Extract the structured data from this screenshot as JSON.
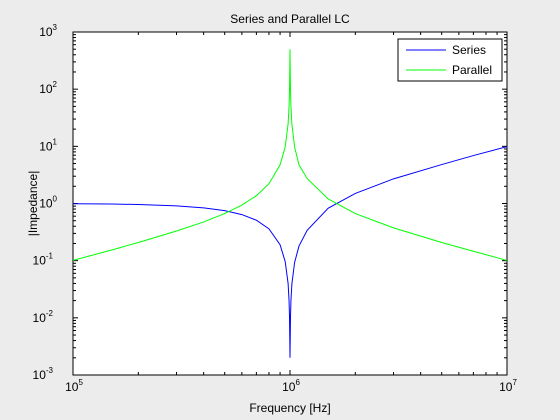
{
  "chart_data": {
    "type": "line",
    "title": "Series and Parallel LC",
    "xlabel": "Frequency [Hz]",
    "ylabel": "|Impedance|",
    "xscale": "log",
    "yscale": "log",
    "xlim": [
      100000,
      10000000
    ],
    "ylim": [
      0.001,
      1000
    ],
    "x_ticks": [
      {
        "base": "10",
        "exp": "5",
        "value": 100000
      },
      {
        "base": "10",
        "exp": "6",
        "value": 1000000
      },
      {
        "base": "10",
        "exp": "7",
        "value": 10000000
      }
    ],
    "y_ticks": [
      {
        "base": "10",
        "exp": "-3",
        "value": 0.001
      },
      {
        "base": "10",
        "exp": "-2",
        "value": 0.01
      },
      {
        "base": "10",
        "exp": "-1",
        "value": 0.1
      },
      {
        "base": "10",
        "exp": "0",
        "value": 1
      },
      {
        "base": "10",
        "exp": "1",
        "value": 10
      },
      {
        "base": "10",
        "exp": "2",
        "value": 100
      },
      {
        "base": "10",
        "exp": "3",
        "value": 1000
      }
    ],
    "grid": false,
    "legend_position": "top-right",
    "series": [
      {
        "name": "Series",
        "color": "#0000ff",
        "x": [
          100000,
          150000,
          200000,
          300000,
          400000,
          500000,
          600000,
          700000,
          800000,
          900000,
          950000,
          980000,
          990000,
          995000,
          998000,
          1000000,
          1002000,
          1005000,
          1010000,
          1020000,
          1050000,
          1100000,
          1200000,
          1500000,
          2000000,
          3000000,
          5000000,
          7000000,
          10000000
        ],
        "y": [
          0.99,
          0.98,
          0.96,
          0.91,
          0.84,
          0.75,
          0.64,
          0.51,
          0.36,
          0.19,
          0.097,
          0.04,
          0.02,
          0.01,
          0.004,
          0.002,
          0.004,
          0.01,
          0.02,
          0.039,
          0.093,
          0.18,
          0.34,
          0.83,
          1.5,
          2.7,
          4.8,
          6.9,
          9.9
        ]
      },
      {
        "name": "Parallel",
        "color": "#00ff00",
        "x": [
          100000,
          150000,
          200000,
          300000,
          400000,
          500000,
          600000,
          700000,
          800000,
          900000,
          950000,
          980000,
          990000,
          995000,
          998000,
          1000000,
          1002000,
          1005000,
          1010000,
          1020000,
          1050000,
          1100000,
          1200000,
          1500000,
          2000000,
          3000000,
          5000000,
          7000000,
          10000000
        ],
        "y": [
          0.101,
          0.153,
          0.208,
          0.33,
          0.476,
          0.667,
          0.94,
          1.37,
          2.22,
          4.74,
          9.74,
          24.7,
          49.7,
          99.7,
          249,
          500,
          249,
          99.7,
          49.7,
          24.7,
          9.76,
          4.76,
          2.73,
          1.2,
          0.667,
          0.375,
          0.208,
          0.146,
          0.101
        ]
      }
    ]
  }
}
